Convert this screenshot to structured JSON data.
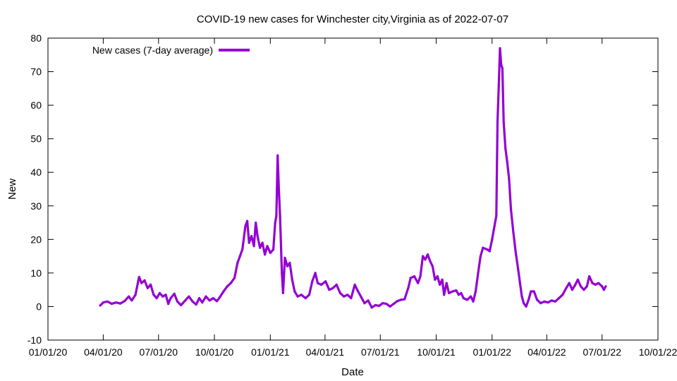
{
  "chart_data": {
    "type": "line",
    "title": "COVID-19 new cases for Winchester city,Virginia as of 2022-07-07",
    "xlabel": "Date",
    "ylabel": "New",
    "ylim": [
      -10,
      80
    ],
    "yticks": [
      -10,
      0,
      10,
      20,
      30,
      40,
      50,
      60,
      70,
      80
    ],
    "xlim": [
      "2020-01-01",
      "2022-10-01"
    ],
    "xticks": [
      {
        "date": "2020-01-01",
        "label": "01/01/20"
      },
      {
        "date": "2020-04-01",
        "label": "04/01/20"
      },
      {
        "date": "2020-07-01",
        "label": "07/01/20"
      },
      {
        "date": "2020-10-01",
        "label": "10/01/20"
      },
      {
        "date": "2021-01-01",
        "label": "01/01/21"
      },
      {
        "date": "2021-04-01",
        "label": "04/01/21"
      },
      {
        "date": "2021-07-01",
        "label": "07/01/21"
      },
      {
        "date": "2021-10-01",
        "label": "10/01/21"
      },
      {
        "date": "2022-01-01",
        "label": "01/01/22"
      },
      {
        "date": "2022-04-01",
        "label": "04/01/22"
      },
      {
        "date": "2022-07-01",
        "label": "07/01/22"
      },
      {
        "date": "2022-10-01",
        "label": "10/01/22"
      }
    ],
    "grid": false,
    "legend_position": "top-left",
    "series": [
      {
        "name": "New cases (7-day average)",
        "color": "#9400d3",
        "points": [
          [
            "2020-03-27",
            0.3
          ],
          [
            "2020-04-01",
            1.2
          ],
          [
            "2020-04-08",
            1.5
          ],
          [
            "2020-04-15",
            0.8
          ],
          [
            "2020-04-22",
            1.2
          ],
          [
            "2020-04-29",
            0.9
          ],
          [
            "2020-05-06",
            1.6
          ],
          [
            "2020-05-13",
            3.0
          ],
          [
            "2020-05-18",
            1.8
          ],
          [
            "2020-05-24",
            3.5
          ],
          [
            "2020-05-30",
            8.8
          ],
          [
            "2020-06-03",
            7.0
          ],
          [
            "2020-06-08",
            7.8
          ],
          [
            "2020-06-13",
            5.5
          ],
          [
            "2020-06-18",
            6.5
          ],
          [
            "2020-06-23",
            3.5
          ],
          [
            "2020-06-28",
            2.5
          ],
          [
            "2020-07-03",
            4.0
          ],
          [
            "2020-07-08",
            3.0
          ],
          [
            "2020-07-13",
            3.5
          ],
          [
            "2020-07-17",
            0.8
          ],
          [
            "2020-07-21",
            2.5
          ],
          [
            "2020-07-27",
            3.8
          ],
          [
            "2020-08-01",
            1.5
          ],
          [
            "2020-08-07",
            0.4
          ],
          [
            "2020-08-13",
            1.6
          ],
          [
            "2020-08-20",
            3.0
          ],
          [
            "2020-08-26",
            1.5
          ],
          [
            "2020-09-01",
            0.6
          ],
          [
            "2020-09-06",
            2.5
          ],
          [
            "2020-09-11",
            1.2
          ],
          [
            "2020-09-17",
            3.0
          ],
          [
            "2020-09-23",
            1.8
          ],
          [
            "2020-09-29",
            2.5
          ],
          [
            "2020-10-05",
            1.6
          ],
          [
            "2020-10-10",
            2.8
          ],
          [
            "2020-10-16",
            4.5
          ],
          [
            "2020-10-22",
            6.0
          ],
          [
            "2020-10-28",
            7.0
          ],
          [
            "2020-11-03",
            8.5
          ],
          [
            "2020-11-08",
            13.0
          ],
          [
            "2020-11-12",
            15.0
          ],
          [
            "2020-11-16",
            17.0
          ],
          [
            "2020-11-21",
            24.0
          ],
          [
            "2020-11-24",
            25.5
          ],
          [
            "2020-11-27",
            19.0
          ],
          [
            "2020-12-01",
            21.0
          ],
          [
            "2020-12-05",
            18.0
          ],
          [
            "2020-12-08",
            25.0
          ],
          [
            "2020-12-11",
            21.0
          ],
          [
            "2020-12-15",
            17.5
          ],
          [
            "2020-12-19",
            19.0
          ],
          [
            "2020-12-23",
            15.5
          ],
          [
            "2020-12-27",
            18.0
          ],
          [
            "2021-01-01",
            16.0
          ],
          [
            "2021-01-06",
            17.0
          ],
          [
            "2021-01-09",
            25.0
          ],
          [
            "2021-01-11",
            27.0
          ],
          [
            "2021-01-13",
            45.0
          ],
          [
            "2021-01-15",
            35.0
          ],
          [
            "2021-01-17",
            27.0
          ],
          [
            "2021-01-20",
            10.0
          ],
          [
            "2021-01-22",
            4.0
          ],
          [
            "2021-01-25",
            14.5
          ],
          [
            "2021-01-29",
            12.0
          ],
          [
            "2021-02-02",
            13.0
          ],
          [
            "2021-02-06",
            8.0
          ],
          [
            "2021-02-10",
            4.5
          ],
          [
            "2021-02-15",
            3.0
          ],
          [
            "2021-02-21",
            3.5
          ],
          [
            "2021-02-28",
            2.5
          ],
          [
            "2021-03-06",
            3.5
          ],
          [
            "2021-03-11",
            7.5
          ],
          [
            "2021-03-16",
            10.0
          ],
          [
            "2021-03-20",
            7.0
          ],
          [
            "2021-03-26",
            6.5
          ],
          [
            "2021-04-02",
            7.5
          ],
          [
            "2021-04-08",
            5.0
          ],
          [
            "2021-04-14",
            5.5
          ],
          [
            "2021-04-20",
            6.5
          ],
          [
            "2021-04-26",
            4.0
          ],
          [
            "2021-05-02",
            3.0
          ],
          [
            "2021-05-08",
            3.5
          ],
          [
            "2021-05-14",
            2.5
          ],
          [
            "2021-05-20",
            6.5
          ],
          [
            "2021-05-24",
            5.0
          ],
          [
            "2021-05-30",
            3.0
          ],
          [
            "2021-06-05",
            1.0
          ],
          [
            "2021-06-11",
            1.8
          ],
          [
            "2021-06-17",
            -0.3
          ],
          [
            "2021-06-23",
            0.4
          ],
          [
            "2021-06-29",
            0.2
          ],
          [
            "2021-07-05",
            1.0
          ],
          [
            "2021-07-11",
            0.8
          ],
          [
            "2021-07-17",
            0.0
          ],
          [
            "2021-07-23",
            0.8
          ],
          [
            "2021-07-29",
            1.6
          ],
          [
            "2021-08-04",
            2.0
          ],
          [
            "2021-08-10",
            2.2
          ],
          [
            "2021-08-16",
            5.5
          ],
          [
            "2021-08-20",
            8.5
          ],
          [
            "2021-08-26",
            9.0
          ],
          [
            "2021-09-01",
            7.0
          ],
          [
            "2021-09-05",
            9.0
          ],
          [
            "2021-09-09",
            15.0
          ],
          [
            "2021-09-13",
            14.0
          ],
          [
            "2021-09-17",
            15.5
          ],
          [
            "2021-09-21",
            13.5
          ],
          [
            "2021-09-25",
            12.0
          ],
          [
            "2021-09-29",
            8.0
          ],
          [
            "2021-10-03",
            9.0
          ],
          [
            "2021-10-07",
            6.5
          ],
          [
            "2021-10-11",
            8.0
          ],
          [
            "2021-10-14",
            3.5
          ],
          [
            "2021-10-18",
            7.0
          ],
          [
            "2021-10-22",
            4.0
          ],
          [
            "2021-10-28",
            4.5
          ],
          [
            "2021-11-03",
            4.8
          ],
          [
            "2021-11-07",
            3.5
          ],
          [
            "2021-11-11",
            4.0
          ],
          [
            "2021-11-15",
            2.5
          ],
          [
            "2021-11-21",
            2.0
          ],
          [
            "2021-11-27",
            3.0
          ],
          [
            "2021-12-01",
            1.5
          ],
          [
            "2021-12-05",
            4.5
          ],
          [
            "2021-12-09",
            10.0
          ],
          [
            "2021-12-13",
            15.0
          ],
          [
            "2021-12-17",
            17.5
          ],
          [
            "2021-12-24",
            17.0
          ],
          [
            "2021-12-28",
            16.5
          ],
          [
            "2022-01-01",
            20.0
          ],
          [
            "2022-01-05",
            24.0
          ],
          [
            "2022-01-08",
            27.0
          ],
          [
            "2022-01-10",
            55.0
          ],
          [
            "2022-01-12",
            66.0
          ],
          [
            "2022-01-14",
            77.0
          ],
          [
            "2022-01-16",
            72.0
          ],
          [
            "2022-01-18",
            71.0
          ],
          [
            "2022-01-20",
            55.0
          ],
          [
            "2022-01-23",
            47.0
          ],
          [
            "2022-01-26",
            43.0
          ],
          [
            "2022-01-29",
            38.0
          ],
          [
            "2022-02-01",
            29.0
          ],
          [
            "2022-02-05",
            22.0
          ],
          [
            "2022-02-09",
            16.0
          ],
          [
            "2022-02-13",
            11.0
          ],
          [
            "2022-02-16",
            7.0
          ],
          [
            "2022-02-19",
            3.0
          ],
          [
            "2022-02-22",
            1.0
          ],
          [
            "2022-02-26",
            0.0
          ],
          [
            "2022-03-02",
            2.0
          ],
          [
            "2022-03-06",
            4.5
          ],
          [
            "2022-03-11",
            4.5
          ],
          [
            "2022-03-16",
            2.0
          ],
          [
            "2022-03-22",
            1.0
          ],
          [
            "2022-03-28",
            1.5
          ],
          [
            "2022-04-03",
            1.2
          ],
          [
            "2022-04-09",
            1.8
          ],
          [
            "2022-04-15",
            1.5
          ],
          [
            "2022-04-21",
            2.5
          ],
          [
            "2022-04-27",
            3.5
          ],
          [
            "2022-05-03",
            5.5
          ],
          [
            "2022-05-08",
            7.0
          ],
          [
            "2022-05-13",
            5.0
          ],
          [
            "2022-05-18",
            6.5
          ],
          [
            "2022-05-22",
            8.0
          ],
          [
            "2022-05-27",
            6.0
          ],
          [
            "2022-06-01",
            5.0
          ],
          [
            "2022-06-06",
            6.0
          ],
          [
            "2022-06-10",
            9.0
          ],
          [
            "2022-06-15",
            7.0
          ],
          [
            "2022-06-20",
            6.5
          ],
          [
            "2022-06-25",
            7.0
          ],
          [
            "2022-07-01",
            6.0
          ],
          [
            "2022-07-04",
            5.0
          ],
          [
            "2022-07-07",
            6.0
          ]
        ]
      }
    ]
  }
}
